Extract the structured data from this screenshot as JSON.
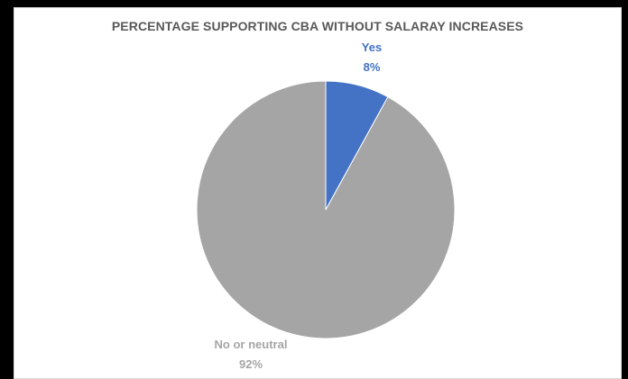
{
  "chart_data": {
    "type": "pie",
    "title": "PERCENTAGE SUPPORTING CBA WITHOUT SALARAY INCREASES",
    "categories": [
      "Yes",
      "No or neutral"
    ],
    "values": [
      8,
      92
    ],
    "labels": [
      "8%",
      "92%"
    ],
    "colors": [
      "#4472C4",
      "#A5A5A5"
    ],
    "legend": "none",
    "start_angle": "12 o'clock, clockwise"
  }
}
